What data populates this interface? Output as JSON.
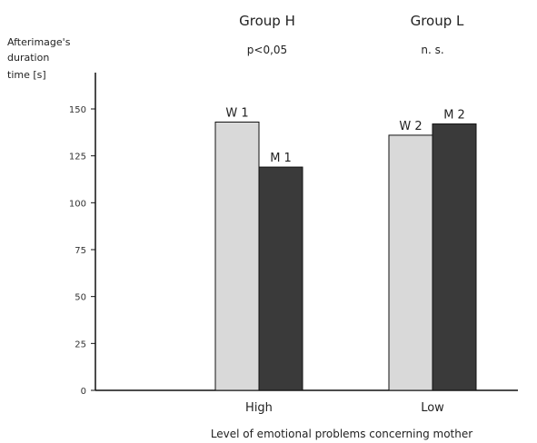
{
  "chart_data": {
    "type": "bar",
    "title": "",
    "ylabel_lines": [
      "Afterimage's",
      "duration",
      "time [s]"
    ],
    "xlabel": "Level of emotional problems concerning mother",
    "categories": [
      "High",
      "Low"
    ],
    "groups": [
      {
        "name": "Group H",
        "significance": "p<0,05"
      },
      {
        "name": "Group L",
        "significance": "n. s."
      }
    ],
    "bars": [
      {
        "label": "W 1",
        "category": "High",
        "value": 143,
        "color": "#d9d9d9"
      },
      {
        "label": "M 1",
        "category": "High",
        "value": 119,
        "color": "#3a3a3a"
      },
      {
        "label": "W 2",
        "category": "Low",
        "value": 136,
        "color": "#d9d9d9"
      },
      {
        "label": "M 2",
        "category": "Low",
        "value": 142,
        "color": "#3a3a3a"
      }
    ],
    "yticks": [
      0,
      25,
      50,
      75,
      100,
      125,
      150
    ],
    "ylim": [
      0,
      170
    ],
    "grid": false
  }
}
